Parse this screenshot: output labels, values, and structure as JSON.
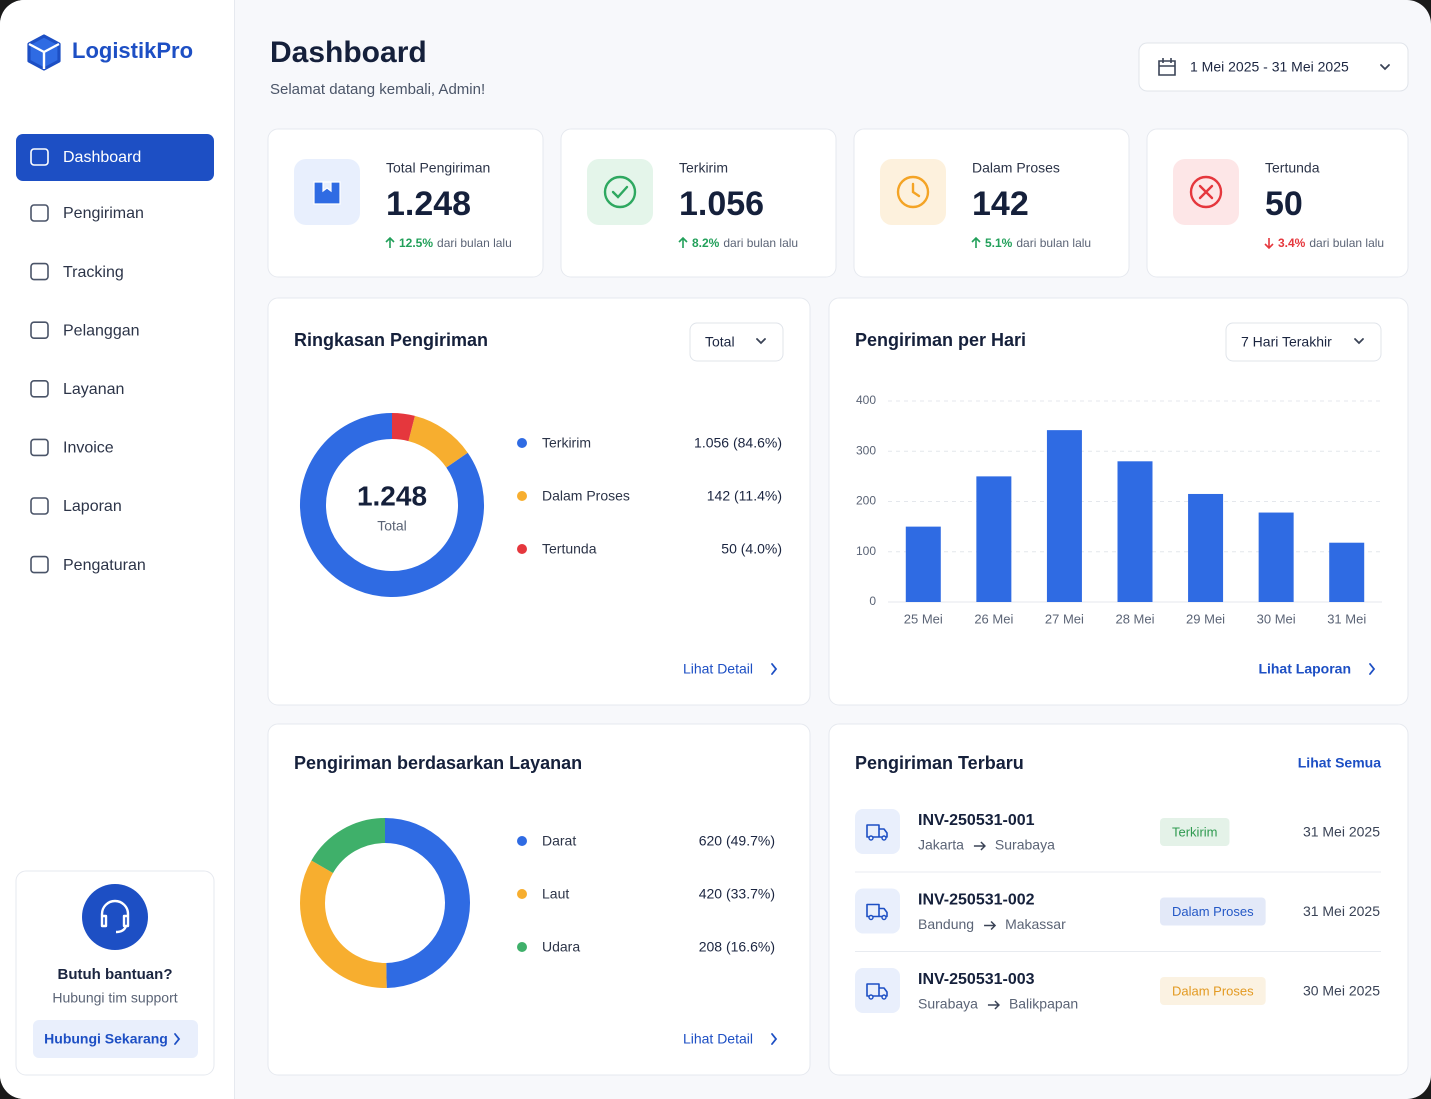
{
  "sidebar": {
    "brand": "LogistikPro",
    "nav": [
      "Dashboard",
      "Pengiriman",
      "Tracking",
      "Pelanggan",
      "Layanan",
      "Invoice",
      "Laporan",
      "Pengaturan"
    ],
    "help": {
      "title": "Butuh bantuan?",
      "text": "Hubungi tim support",
      "button": "Hubungi Sekarang"
    }
  },
  "header": {
    "title": "Dashboard",
    "subtitle": "Selamat datang kembali, Admin!",
    "date_range": "1 Mei 2025 - 31 Mei 2025"
  },
  "stats": [
    {
      "label": "Total Pengiriman",
      "value": "1.248",
      "change": "12.5%",
      "note": "dari bulan lalu",
      "trend": "up"
    },
    {
      "label": "Terkirim",
      "value": "1.056",
      "change": "8.2%",
      "note": "dari bulan lalu",
      "trend": "up"
    },
    {
      "label": "Dalam Proses",
      "value": "142",
      "change": "5.1%",
      "note": "dari bulan lalu",
      "trend": "up"
    },
    {
      "label": "Tertunda",
      "value": "50",
      "change": "3.4%",
      "note": "dari bulan lalu",
      "trend": "down"
    }
  ],
  "chart_data": [
    {
      "type": "pie",
      "title": "Ringkasan Pengiriman",
      "dropdown": "Total",
      "center_value": "1.248",
      "center_label": "Total",
      "categories": [
        "Terkirim",
        "Dalam Proses",
        "Tertunda"
      ],
      "values": [
        1056,
        142,
        50
      ],
      "value_labels": [
        "1.056 (84.6%)",
        "142 (11.4%)",
        "50 (4.0%)"
      ],
      "colors": [
        "#2f6be3",
        "#f7ae2f",
        "#e5373d"
      ],
      "clockwise": false,
      "link": "Lihat Detail"
    },
    {
      "type": "bar",
      "title": "Pengiriman per Hari",
      "dropdown": "7 Hari Terakhir",
      "categories": [
        "25 Mei",
        "26 Mei",
        "27 Mei",
        "28 Mei",
        "29 Mei",
        "30 Mei",
        "31 Mei"
      ],
      "values": [
        150,
        250,
        342,
        280,
        215,
        178,
        118
      ],
      "color": "#2f6be3",
      "ylim": [
        0,
        400
      ],
      "yticks": [
        0,
        100,
        200,
        300,
        400
      ],
      "grid": true,
      "link": "Lihat Laporan"
    },
    {
      "type": "pie",
      "title": "Pengiriman berdasarkan Layanan",
      "categories": [
        "Darat",
        "Laut",
        "Udara"
      ],
      "values": [
        620,
        420,
        208
      ],
      "value_labels": [
        "620 (49.7%)",
        "420 (33.7%)",
        "208 (16.6%)"
      ],
      "colors": [
        "#2f6be3",
        "#f7ae2f",
        "#3fb06a"
      ],
      "clockwise": true,
      "link": "Lihat Detail"
    }
  ],
  "recent": {
    "title": "Pengiriman Terbaru",
    "link": "Lihat Semua",
    "rows": [
      {
        "id": "INV-250531-001",
        "from": "Jakarta",
        "to": "Surabaya",
        "status": "Terkirim",
        "status_color": "#2e9a50",
        "date": "31 Mei 2025"
      },
      {
        "id": "INV-250531-002",
        "from": "Bandung",
        "to": "Makassar",
        "status": "Dalam Proses",
        "status_color": "#2458c6",
        "date": "31 Mei 2025"
      },
      {
        "id": "INV-250531-003",
        "from": "Surabaya",
        "to": "Balikpapan",
        "status": "Dalam Proses",
        "status_color": "#e39a22",
        "date": "30 Mei 2025"
      }
    ]
  }
}
